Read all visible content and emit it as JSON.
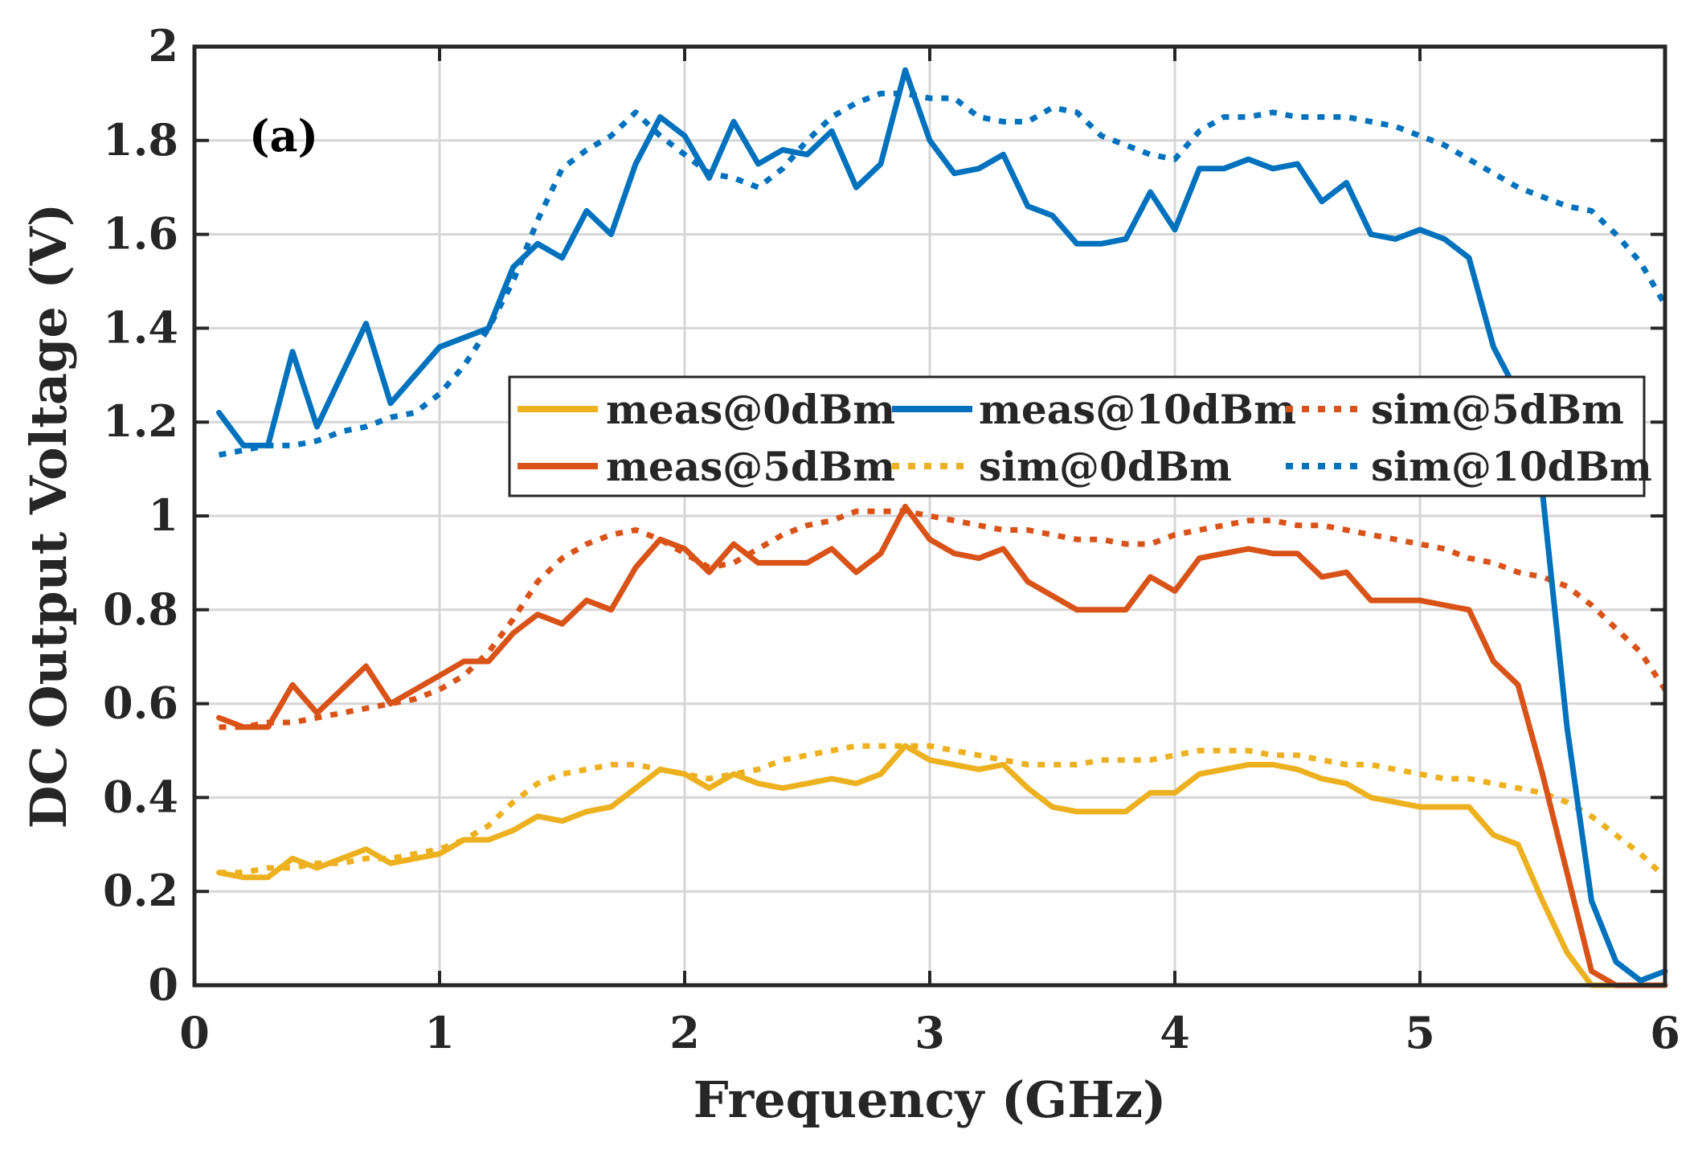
{
  "chart_data": {
    "type": "line",
    "panel_label": "(a)",
    "xlabel": "Frequency (GHz)",
    "ylabel": "DC Output Voltage (V)",
    "xlim": [
      0,
      6
    ],
    "ylim": [
      0,
      2
    ],
    "xticks": [
      0,
      1,
      2,
      3,
      4,
      5,
      6
    ],
    "xtick_labels": [
      "0",
      "1",
      "2",
      "3",
      "4",
      "5",
      "6"
    ],
    "yticks": [
      0,
      0.2,
      0.4,
      0.6,
      0.8,
      1,
      1.2,
      1.4,
      1.6,
      1.8,
      2
    ],
    "ytick_labels": [
      "0",
      "0.2",
      "0.4",
      "0.6",
      "0.8",
      "1",
      "1.2",
      "1.4",
      "1.6",
      "1.8",
      "2"
    ],
    "grid": true,
    "legend_position": "center-right",
    "series": [
      {
        "name": "meas@0dBm",
        "style": "solid",
        "color": "#EDB120",
        "x": [
          0.1,
          0.2,
          0.3,
          0.4,
          0.5,
          0.6,
          0.7,
          0.8,
          0.9,
          1.0,
          1.1,
          1.2,
          1.3,
          1.4,
          1.5,
          1.6,
          1.7,
          1.8,
          1.9,
          2.0,
          2.1,
          2.2,
          2.3,
          2.4,
          2.5,
          2.6,
          2.7,
          2.8,
          2.9,
          3.0,
          3.1,
          3.2,
          3.3,
          3.4,
          3.5,
          3.6,
          3.7,
          3.8,
          3.9,
          4.0,
          4.1,
          4.2,
          4.3,
          4.4,
          4.5,
          4.6,
          4.7,
          4.8,
          4.9,
          5.0,
          5.1,
          5.2,
          5.3,
          5.4,
          5.5,
          5.6,
          5.7,
          5.8,
          5.9,
          6.0
        ],
        "y": [
          0.24,
          0.23,
          0.23,
          0.27,
          0.25,
          0.27,
          0.29,
          0.26,
          0.27,
          0.28,
          0.31,
          0.31,
          0.33,
          0.36,
          0.35,
          0.37,
          0.38,
          0.42,
          0.46,
          0.45,
          0.42,
          0.45,
          0.43,
          0.42,
          0.43,
          0.44,
          0.43,
          0.45,
          0.51,
          0.48,
          0.47,
          0.46,
          0.47,
          0.42,
          0.38,
          0.37,
          0.37,
          0.37,
          0.41,
          0.41,
          0.45,
          0.46,
          0.47,
          0.47,
          0.46,
          0.44,
          0.43,
          0.4,
          0.39,
          0.38,
          0.38,
          0.38,
          0.32,
          0.3,
          0.18,
          0.07,
          0.0,
          0.0,
          0.0,
          0.0
        ]
      },
      {
        "name": "meas@10dBm",
        "style": "solid",
        "color": "#0072BD",
        "x": [
          0.1,
          0.2,
          0.3,
          0.4,
          0.5,
          0.6,
          0.7,
          0.8,
          0.9,
          1.0,
          1.1,
          1.2,
          1.3,
          1.4,
          1.5,
          1.6,
          1.7,
          1.8,
          1.9,
          2.0,
          2.1,
          2.2,
          2.3,
          2.4,
          2.5,
          2.6,
          2.7,
          2.8,
          2.9,
          3.0,
          3.1,
          3.2,
          3.3,
          3.4,
          3.5,
          3.6,
          3.7,
          3.8,
          3.9,
          4.0,
          4.1,
          4.2,
          4.3,
          4.4,
          4.5,
          4.6,
          4.7,
          4.8,
          4.9,
          5.0,
          5.1,
          5.2,
          5.3,
          5.4,
          5.5,
          5.6,
          5.7,
          5.8,
          5.9,
          6.0
        ],
        "y": [
          1.22,
          1.15,
          1.15,
          1.35,
          1.19,
          1.3,
          1.41,
          1.24,
          1.3,
          1.36,
          1.38,
          1.4,
          1.53,
          1.58,
          1.55,
          1.65,
          1.6,
          1.75,
          1.85,
          1.81,
          1.72,
          1.84,
          1.75,
          1.78,
          1.77,
          1.82,
          1.7,
          1.75,
          1.95,
          1.8,
          1.73,
          1.74,
          1.77,
          1.66,
          1.64,
          1.58,
          1.58,
          1.59,
          1.69,
          1.61,
          1.74,
          1.74,
          1.76,
          1.74,
          1.75,
          1.67,
          1.71,
          1.6,
          1.59,
          1.61,
          1.59,
          1.55,
          1.36,
          1.26,
          1.05,
          0.55,
          0.18,
          0.05,
          0.01,
          0.03
        ]
      },
      {
        "name": "sim@5dBm",
        "style": "dotted",
        "color": "#D95319",
        "x": [
          0.1,
          0.2,
          0.3,
          0.4,
          0.5,
          0.6,
          0.7,
          0.8,
          0.9,
          1.0,
          1.1,
          1.2,
          1.3,
          1.4,
          1.5,
          1.6,
          1.7,
          1.8,
          1.9,
          2.0,
          2.1,
          2.2,
          2.3,
          2.4,
          2.5,
          2.6,
          2.7,
          2.8,
          2.9,
          3.0,
          3.1,
          3.2,
          3.3,
          3.4,
          3.5,
          3.6,
          3.7,
          3.8,
          3.9,
          4.0,
          4.1,
          4.2,
          4.3,
          4.4,
          4.5,
          4.6,
          4.7,
          4.8,
          4.9,
          5.0,
          5.1,
          5.2,
          5.3,
          5.4,
          5.5,
          5.6,
          5.7,
          5.8,
          5.9,
          6.0
        ],
        "y": [
          0.55,
          0.55,
          0.56,
          0.56,
          0.57,
          0.58,
          0.59,
          0.6,
          0.61,
          0.63,
          0.66,
          0.71,
          0.78,
          0.86,
          0.91,
          0.94,
          0.96,
          0.97,
          0.95,
          0.92,
          0.89,
          0.9,
          0.93,
          0.96,
          0.98,
          0.99,
          1.01,
          1.01,
          1.01,
          1.0,
          0.99,
          0.98,
          0.97,
          0.97,
          0.96,
          0.95,
          0.95,
          0.94,
          0.94,
          0.96,
          0.97,
          0.98,
          0.99,
          0.99,
          0.98,
          0.98,
          0.97,
          0.96,
          0.95,
          0.94,
          0.93,
          0.91,
          0.9,
          0.88,
          0.87,
          0.85,
          0.81,
          0.76,
          0.71,
          0.63
        ]
      },
      {
        "name": "meas@5dBm",
        "style": "solid",
        "color": "#D95319",
        "x": [
          0.1,
          0.2,
          0.3,
          0.4,
          0.5,
          0.6,
          0.7,
          0.8,
          0.9,
          1.0,
          1.1,
          1.2,
          1.3,
          1.4,
          1.5,
          1.6,
          1.7,
          1.8,
          1.9,
          2.0,
          2.1,
          2.2,
          2.3,
          2.4,
          2.5,
          2.6,
          2.7,
          2.8,
          2.9,
          3.0,
          3.1,
          3.2,
          3.3,
          3.4,
          3.5,
          3.6,
          3.7,
          3.8,
          3.9,
          4.0,
          4.1,
          4.2,
          4.3,
          4.4,
          4.5,
          4.6,
          4.7,
          4.8,
          4.9,
          5.0,
          5.1,
          5.2,
          5.3,
          5.4,
          5.5,
          5.6,
          5.7,
          5.8,
          5.9,
          6.0
        ],
        "y": [
          0.57,
          0.55,
          0.55,
          0.64,
          0.58,
          0.63,
          0.68,
          0.6,
          0.63,
          0.66,
          0.69,
          0.69,
          0.75,
          0.79,
          0.77,
          0.82,
          0.8,
          0.89,
          0.95,
          0.93,
          0.88,
          0.94,
          0.9,
          0.9,
          0.9,
          0.93,
          0.88,
          0.92,
          1.02,
          0.95,
          0.92,
          0.91,
          0.93,
          0.86,
          0.83,
          0.8,
          0.8,
          0.8,
          0.87,
          0.84,
          0.91,
          0.92,
          0.93,
          0.92,
          0.92,
          0.87,
          0.88,
          0.82,
          0.82,
          0.82,
          0.81,
          0.8,
          0.69,
          0.64,
          0.45,
          0.24,
          0.03,
          0.0,
          0.0,
          0.0
        ]
      },
      {
        "name": "sim@0dBm",
        "style": "dotted",
        "color": "#EDB120",
        "x": [
          0.1,
          0.2,
          0.3,
          0.4,
          0.5,
          0.6,
          0.7,
          0.8,
          0.9,
          1.0,
          1.1,
          1.2,
          1.3,
          1.4,
          1.5,
          1.6,
          1.7,
          1.8,
          1.9,
          2.0,
          2.1,
          2.2,
          2.3,
          2.4,
          2.5,
          2.6,
          2.7,
          2.8,
          2.9,
          3.0,
          3.1,
          3.2,
          3.3,
          3.4,
          3.5,
          3.6,
          3.7,
          3.8,
          3.9,
          4.0,
          4.1,
          4.2,
          4.3,
          4.4,
          4.5,
          4.6,
          4.7,
          4.8,
          4.9,
          5.0,
          5.1,
          5.2,
          5.3,
          5.4,
          5.5,
          5.6,
          5.7,
          5.8,
          5.9,
          6.0
        ],
        "y": [
          0.24,
          0.24,
          0.25,
          0.25,
          0.26,
          0.26,
          0.27,
          0.27,
          0.28,
          0.29,
          0.31,
          0.34,
          0.39,
          0.43,
          0.45,
          0.46,
          0.47,
          0.47,
          0.46,
          0.45,
          0.44,
          0.45,
          0.46,
          0.48,
          0.49,
          0.5,
          0.51,
          0.51,
          0.51,
          0.51,
          0.5,
          0.49,
          0.48,
          0.47,
          0.47,
          0.47,
          0.48,
          0.48,
          0.48,
          0.49,
          0.5,
          0.5,
          0.5,
          0.49,
          0.49,
          0.48,
          0.47,
          0.47,
          0.46,
          0.45,
          0.44,
          0.44,
          0.43,
          0.42,
          0.41,
          0.39,
          0.36,
          0.32,
          0.28,
          0.23
        ]
      },
      {
        "name": "sim@10dBm",
        "style": "dotted",
        "color": "#0072BD",
        "x": [
          0.1,
          0.2,
          0.3,
          0.4,
          0.5,
          0.6,
          0.7,
          0.8,
          0.9,
          1.0,
          1.1,
          1.2,
          1.3,
          1.4,
          1.5,
          1.6,
          1.7,
          1.8,
          1.9,
          2.0,
          2.1,
          2.2,
          2.3,
          2.4,
          2.5,
          2.6,
          2.7,
          2.8,
          2.9,
          3.0,
          3.1,
          3.2,
          3.3,
          3.4,
          3.5,
          3.6,
          3.7,
          3.8,
          3.9,
          4.0,
          4.1,
          4.2,
          4.3,
          4.4,
          4.5,
          4.6,
          4.7,
          4.8,
          4.9,
          5.0,
          5.1,
          5.2,
          5.3,
          5.4,
          5.5,
          5.6,
          5.7,
          5.8,
          5.9,
          6.0
        ],
        "y": [
          1.13,
          1.14,
          1.15,
          1.15,
          1.16,
          1.18,
          1.19,
          1.21,
          1.22,
          1.26,
          1.32,
          1.4,
          1.5,
          1.63,
          1.74,
          1.78,
          1.81,
          1.86,
          1.81,
          1.77,
          1.73,
          1.72,
          1.7,
          1.74,
          1.8,
          1.85,
          1.88,
          1.9,
          1.9,
          1.89,
          1.89,
          1.85,
          1.84,
          1.84,
          1.87,
          1.86,
          1.81,
          1.79,
          1.77,
          1.76,
          1.82,
          1.85,
          1.85,
          1.86,
          1.85,
          1.85,
          1.85,
          1.84,
          1.83,
          1.81,
          1.79,
          1.76,
          1.73,
          1.7,
          1.68,
          1.66,
          1.65,
          1.6,
          1.54,
          1.45
        ]
      }
    ]
  }
}
